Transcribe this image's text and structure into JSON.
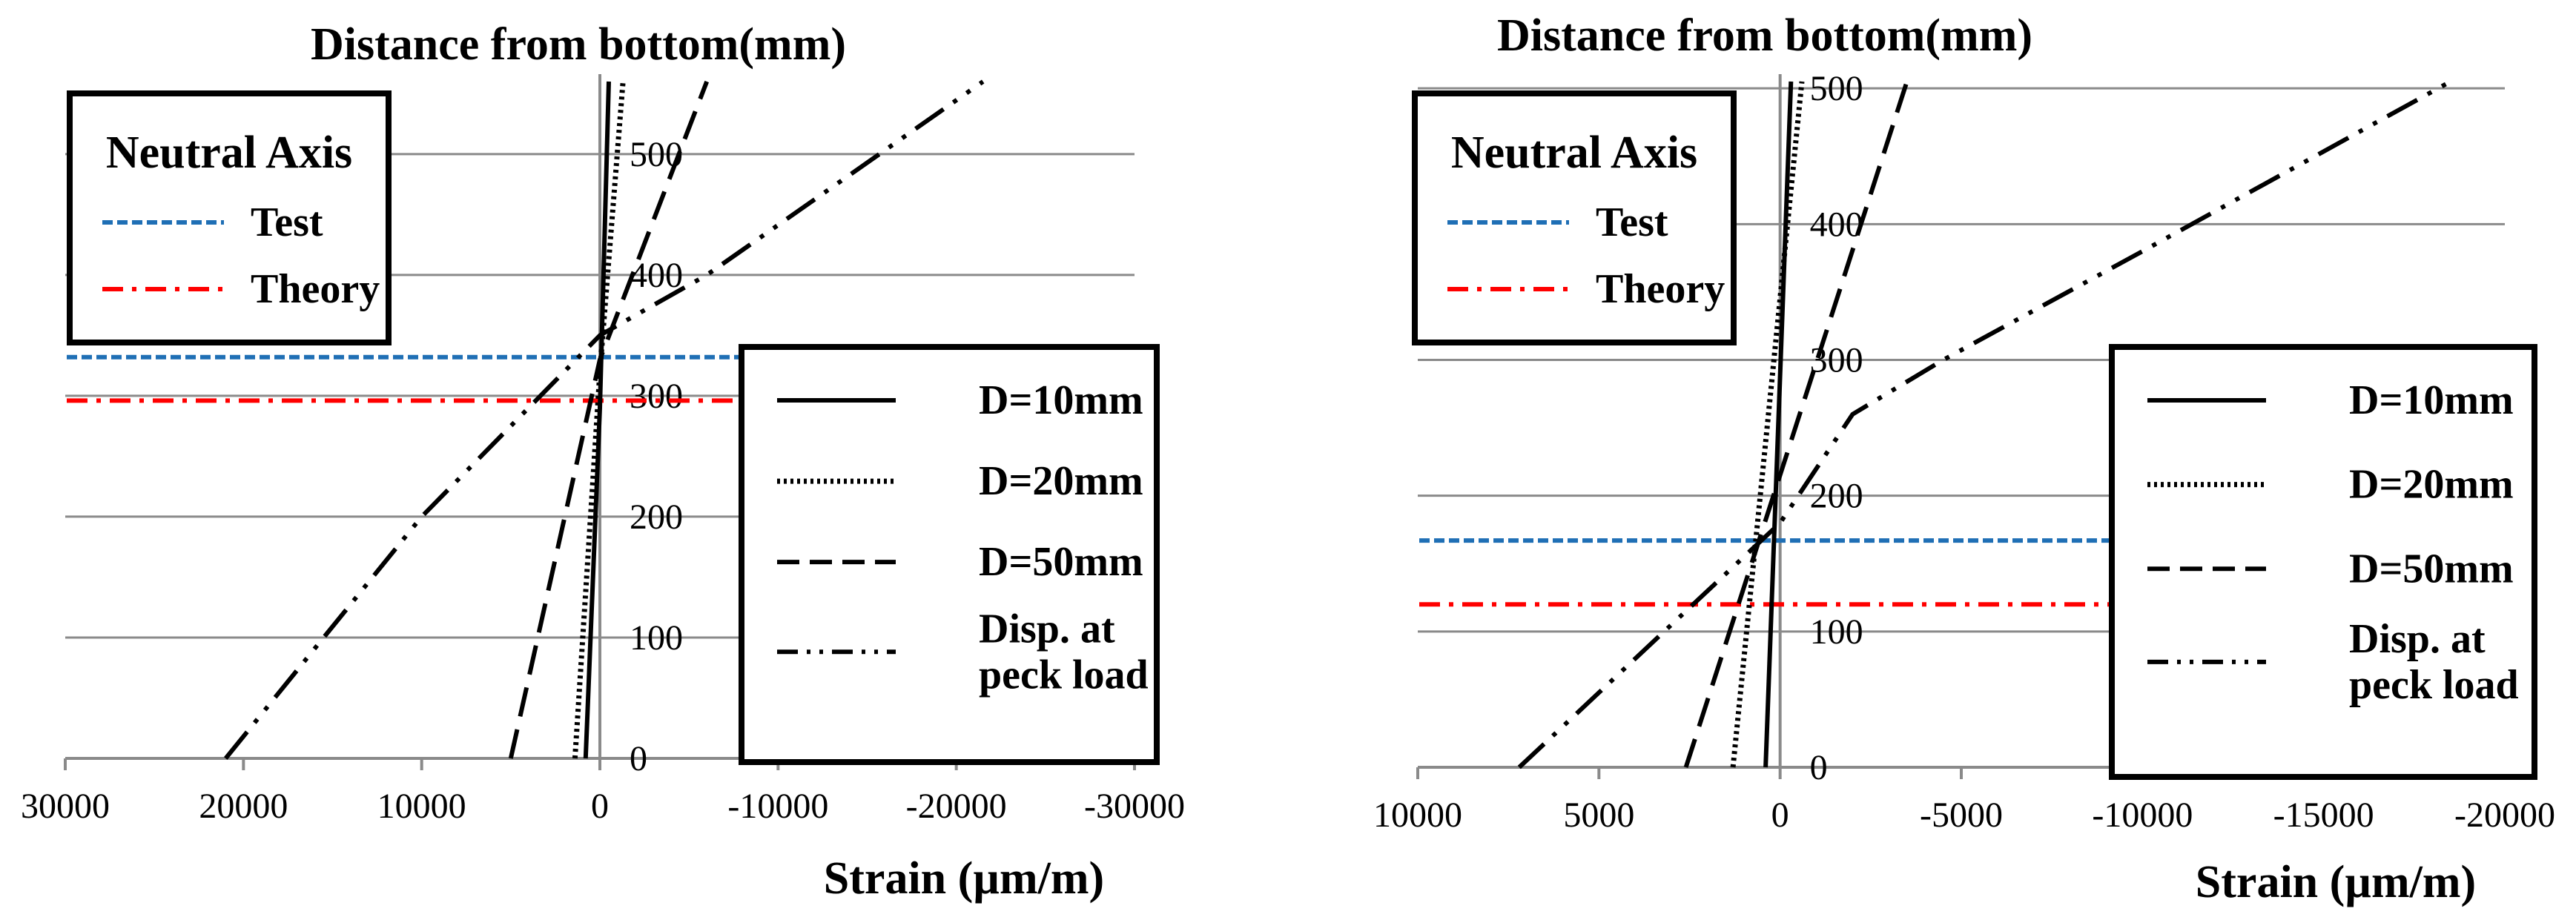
{
  "chart_data": [
    {
      "type": "line",
      "title": "Distance from bottom(mm)",
      "xlabel": "Strain (µm/m)",
      "ylabel": "Distance from bottom(mm)",
      "x_reversed": true,
      "xlim": [
        30000,
        -30000
      ],
      "ylim": [
        0,
        560
      ],
      "x_ticks": [
        30000,
        20000,
        10000,
        0,
        -10000,
        -20000,
        -30000
      ],
      "x_tick_labels": [
        "30000",
        "20000",
        "10000",
        "0",
        "-10000",
        "-20000",
        "-30000"
      ],
      "y_ticks": [
        0,
        100,
        200,
        300,
        400,
        500
      ],
      "y_tick_labels": [
        "0",
        "100",
        "200",
        "300",
        "400",
        "500"
      ],
      "series": [
        {
          "name": "D=10mm",
          "style": "solid",
          "points": [
            [
              800,
              0
            ],
            [
              0,
              290
            ],
            [
              -500,
              560
            ]
          ]
        },
        {
          "name": "D=20mm",
          "style": "dotted",
          "points": [
            [
              1400,
              0
            ],
            [
              0,
              320
            ],
            [
              -1300,
              560
            ]
          ]
        },
        {
          "name": "D=50mm",
          "style": "dashed",
          "points": [
            [
              5000,
              0
            ],
            [
              0,
              330
            ],
            [
              -6000,
              560
            ]
          ]
        },
        {
          "name": "Disp. at peck load",
          "style": "dashdotdot",
          "points": [
            [
              21000,
              0
            ],
            [
              10000,
              200
            ],
            [
              0,
              350
            ],
            [
              -6000,
              400
            ],
            [
              -21500,
              560
            ]
          ]
        }
      ],
      "neutral_axis": {
        "title": "Neutral Axis",
        "entries": [
          {
            "name": "Test",
            "value": 332,
            "color": "#1f6fb5",
            "style": "dashed"
          },
          {
            "name": "Theory",
            "value": 296,
            "color": "#ff0000",
            "style": "dashdot"
          }
        ]
      },
      "legend": [
        "D=10mm",
        "D=20mm",
        "D=50mm",
        "Disp. at peck load"
      ],
      "legend_lines": [
        [
          "D=10mm"
        ],
        [
          "D=20mm"
        ],
        [
          "D=50mm"
        ],
        [
          "Disp. at",
          "peck load"
        ]
      ],
      "legend_position": "bottom-right",
      "neutral_legend_position": "top-left",
      "grid": true
    },
    {
      "type": "line",
      "title": "Distance from bottom(mm)",
      "xlabel": "Strain (µm/m)",
      "ylabel": "Distance from bottom(mm)",
      "x_reversed": true,
      "xlim": [
        10000,
        -20000
      ],
      "ylim": [
        0,
        505
      ],
      "x_ticks": [
        10000,
        5000,
        0,
        -5000,
        -10000,
        -15000,
        -20000
      ],
      "x_tick_labels": [
        "10000",
        "5000",
        "0",
        "-5000",
        "-10000",
        "-15000",
        "-20000"
      ],
      "y_ticks": [
        0,
        100,
        200,
        300,
        400,
        500
      ],
      "y_tick_labels": [
        "0",
        "100",
        "200",
        "300",
        "400",
        "500"
      ],
      "series": [
        {
          "name": "D=10mm",
          "style": "solid",
          "points": [
            [
              400,
              0
            ],
            [
              -300,
              505
            ]
          ]
        },
        {
          "name": "D=20mm",
          "style": "dotted",
          "points": [
            [
              1300,
              0
            ],
            [
              -600,
              505
            ]
          ]
        },
        {
          "name": "D=50mm",
          "style": "dashed",
          "points": [
            [
              2600,
              0
            ],
            [
              -3500,
              505
            ]
          ]
        },
        {
          "name": "Disp. at peck load",
          "style": "dashdotdot",
          "points": [
            [
              7200,
              0
            ],
            [
              0,
              180
            ],
            [
              -2000,
              260
            ],
            [
              -4500,
              300
            ],
            [
              -10000,
              380
            ],
            [
              -18500,
              505
            ]
          ]
        }
      ],
      "neutral_axis": {
        "title": "Neutral Axis",
        "entries": [
          {
            "name": "Test",
            "value": 167,
            "color": "#1f6fb5",
            "style": "dashed"
          },
          {
            "name": "Theory",
            "value": 120,
            "color": "#ff0000",
            "style": "dashdot"
          }
        ]
      },
      "legend": [
        "D=10mm",
        "D=20mm",
        "D=50mm",
        "Disp. at peck load"
      ],
      "legend_lines": [
        [
          "D=10mm"
        ],
        [
          "D=20mm"
        ],
        [
          "D=50mm"
        ],
        [
          "Disp. at",
          "peck load"
        ]
      ],
      "legend_position": "bottom-right",
      "neutral_legend_position": "top-left",
      "grid": true
    }
  ]
}
